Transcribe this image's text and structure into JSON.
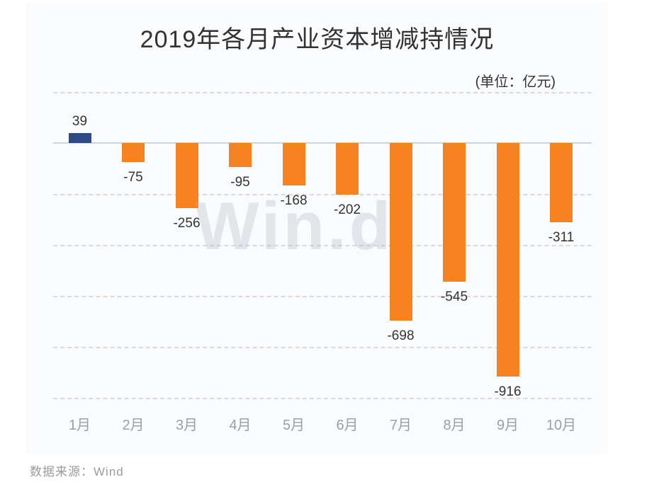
{
  "title": "2019年各月产业资本增减持情况",
  "unit_label": "(单位：亿元)",
  "watermark": "Win.d",
  "source": "数据来源：Wind",
  "colors": {
    "positive_bar": "#2e4a86",
    "negative_bar": "#f6831f",
    "panel_background": "#fafbfd",
    "zero_line": "#cbd5e8",
    "gridline": "#dadada",
    "value_label": "#333333",
    "month_label": "#9b9fa6",
    "title": "#333333",
    "source": "#9b9b9b",
    "watermark": "#e9ebf0"
  },
  "chart_data": {
    "type": "bar",
    "categories": [
      "1月",
      "2月",
      "3月",
      "4月",
      "5月",
      "6月",
      "7月",
      "8月",
      "9月",
      "10月"
    ],
    "values": [
      39,
      -75,
      -256,
      -95,
      -168,
      -202,
      -698,
      -545,
      -916,
      -311
    ],
    "title": "2019年各月产业资本增减持情况",
    "xlabel": "",
    "ylabel": "亿元",
    "ylim": [
      -1000,
      200
    ],
    "gridline_step": 200,
    "grid": true,
    "legend": false,
    "value_labels": true
  }
}
